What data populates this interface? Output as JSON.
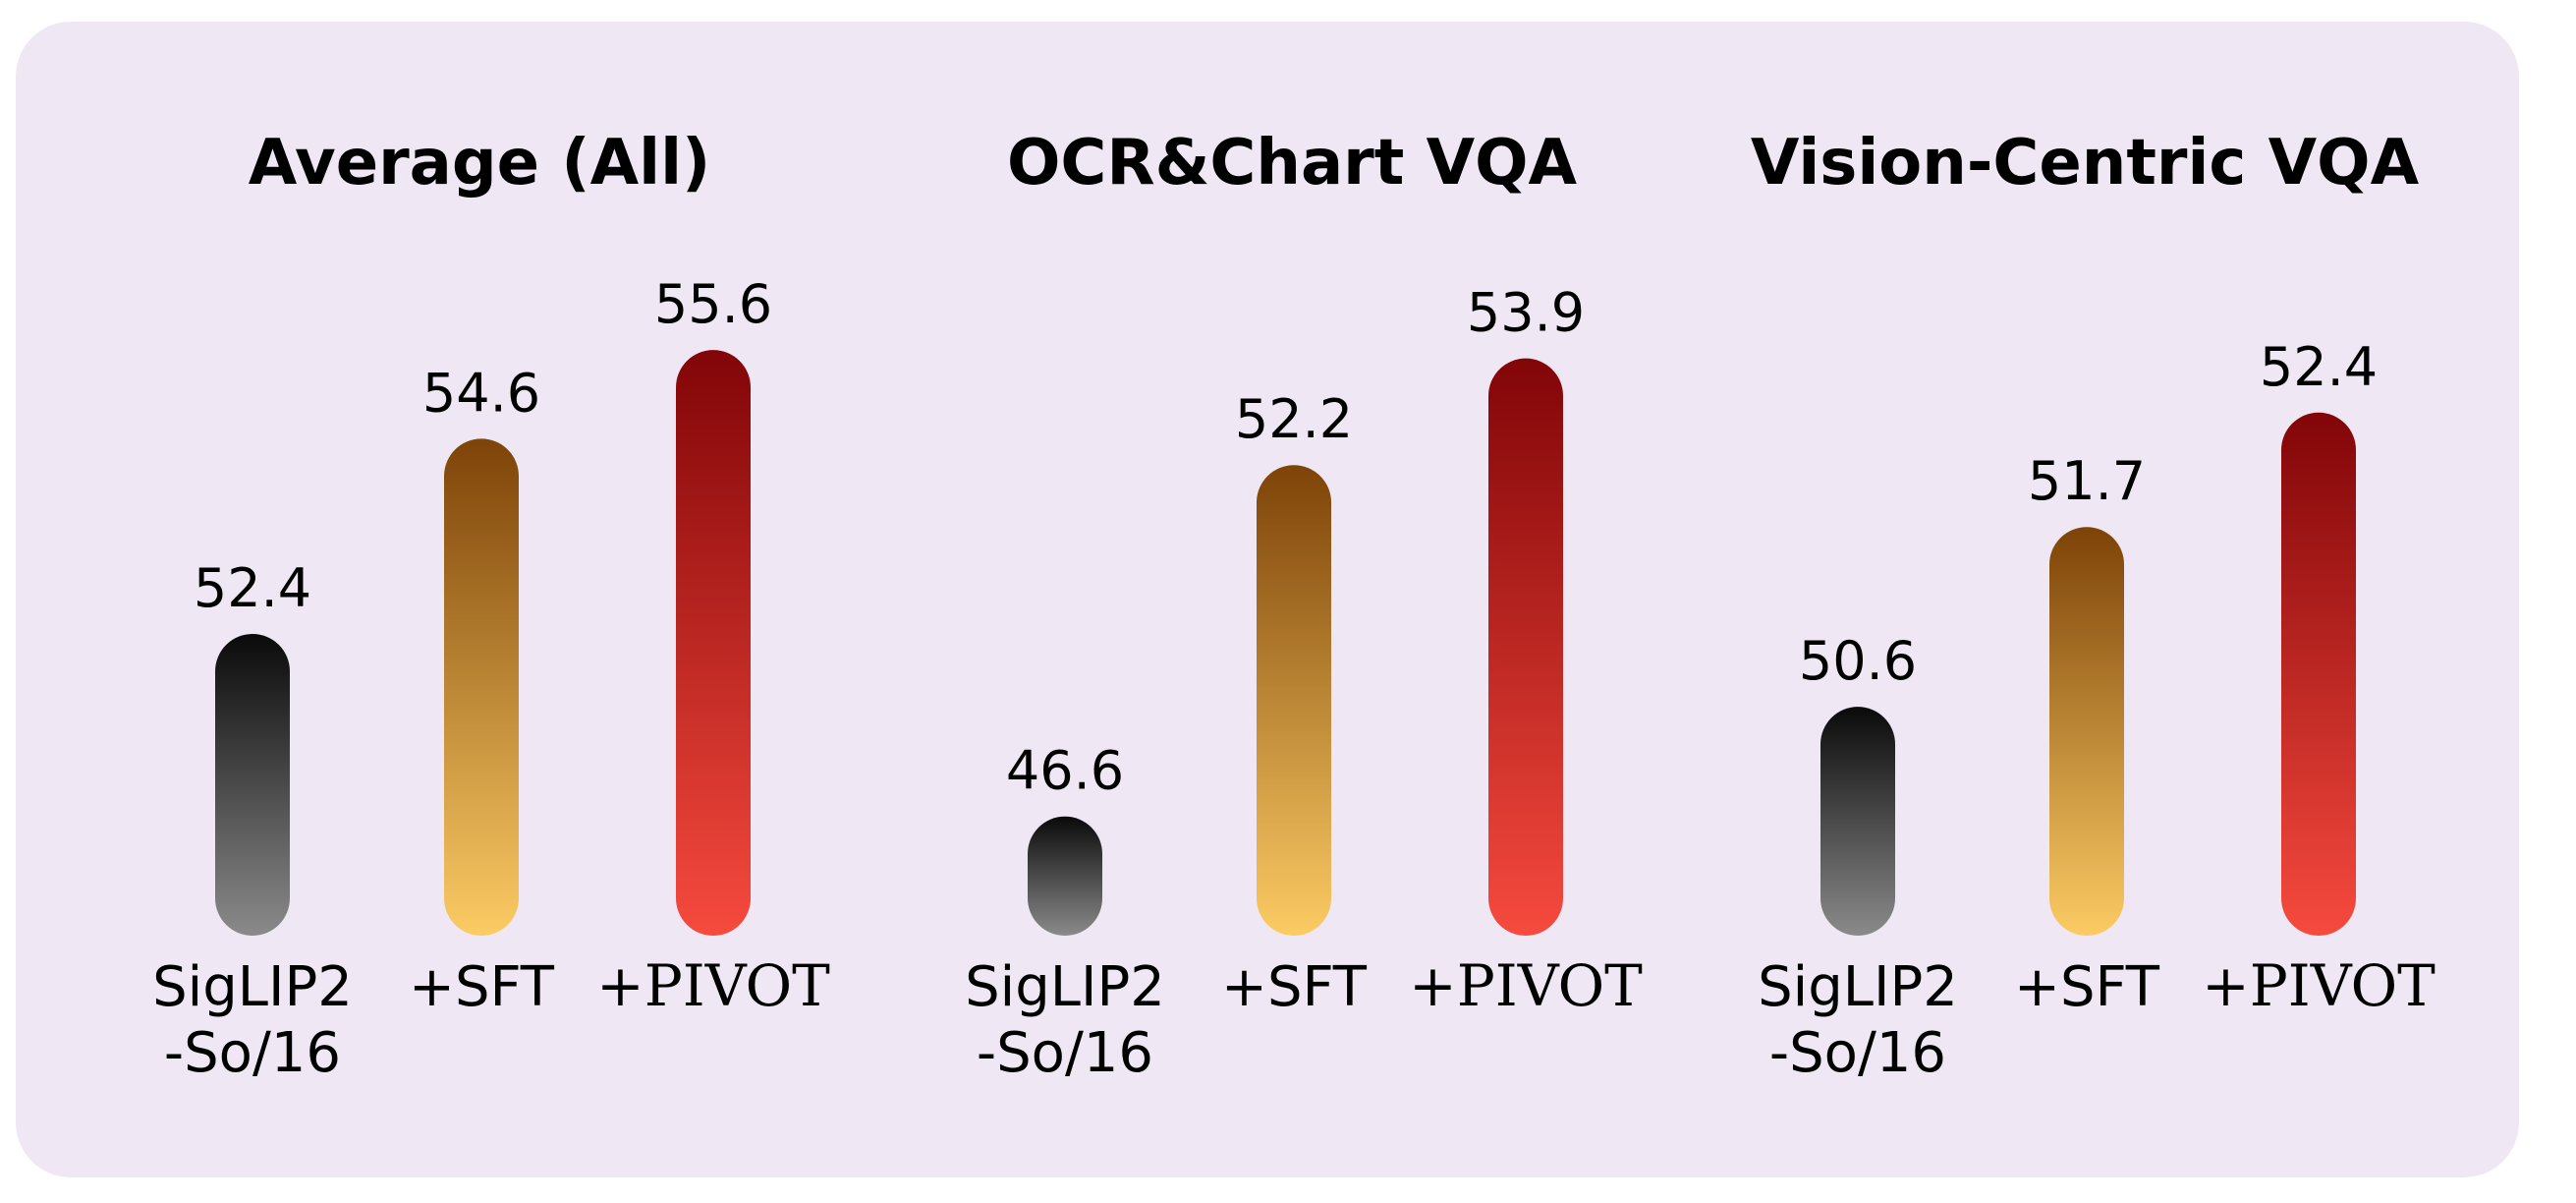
{
  "colors": {
    "background": "#efe8f4",
    "baseline_top": "#0a0a0a",
    "baseline_bottom": "#8a8a8a",
    "sft_top": "#7d4308",
    "sft_bottom": "#fbcb64",
    "pivot_top": "#820508",
    "pivot_bottom": "#f64a3e"
  },
  "chart_data": [
    {
      "type": "bar",
      "title": "Average (All)",
      "categories": [
        "SigLIP2\n-So/16",
        "+SFT",
        "+PIVOT"
      ],
      "values": [
        52.4,
        54.6,
        55.6
      ],
      "value_labels": [
        "52.4",
        "54.6",
        "55.6"
      ],
      "ylim": [
        49.0,
        56.0
      ]
    },
    {
      "type": "bar",
      "title": "OCR&Chart VQA",
      "categories": [
        "SigLIP2\n-So/16",
        "+SFT",
        "+PIVOT"
      ],
      "values": [
        46.6,
        52.2,
        53.9
      ],
      "value_labels": [
        "46.6",
        "52.2",
        "53.9"
      ],
      "ylim": [
        44.7,
        54.6
      ]
    },
    {
      "type": "bar",
      "title": "Vision-Centric VQA",
      "categories": [
        "SigLIP2\n-So/16",
        "+SFT",
        "+PIVOT"
      ],
      "values": [
        50.6,
        51.7,
        52.4
      ],
      "value_labels": [
        "50.6",
        "51.7",
        "52.4"
      ],
      "ylim": [
        49.2,
        53.0
      ]
    }
  ]
}
